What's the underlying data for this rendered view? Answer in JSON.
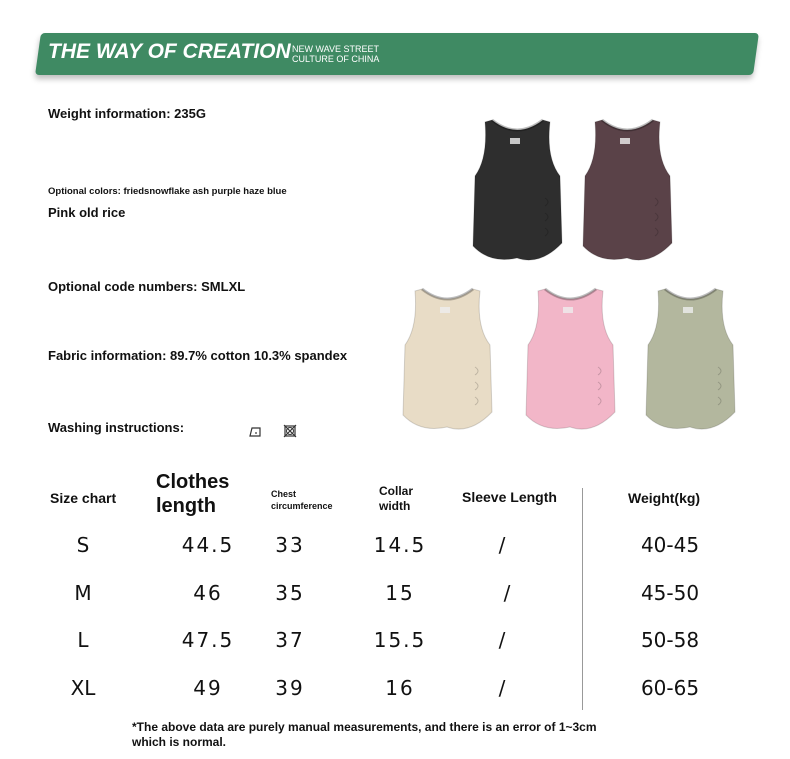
{
  "banner": {
    "title": "THE WAY OF CREATION",
    "subtitle_line1": "NEW WAVE STREET",
    "subtitle_line2": "CULTURE OF CHINA",
    "color": "#3f8a63"
  },
  "info": {
    "weight": "Weight information: 235G",
    "colors_line1": "Optional colors: friedsnowflake ash purple haze blue",
    "colors_line2": "Pink old rice",
    "sizes": "Optional code numbers: SMLXL",
    "fabric": "Fabric information: 89.7% cotton 10.3% spandex",
    "washing": "Washing instructions:"
  },
  "washing_icons": [
    "iron-icon",
    "no-tumble-dry-icon"
  ],
  "products": [
    {
      "color": "#2e2e2e"
    },
    {
      "color": "#5a4248"
    },
    {
      "color": "#e8dcc6"
    },
    {
      "color": "#f2b6c8"
    },
    {
      "color": "#b3b79e"
    }
  ],
  "size_chart": {
    "headers": {
      "size": "Size chart",
      "clothes_length_1": "Clothes",
      "clothes_length_2": "length",
      "chest_1": "Chest",
      "chest_2": "circumference",
      "collar_1": "Collar",
      "collar_2": "width",
      "sleeve": "Sleeve Length",
      "weight": "Weight(kg)"
    },
    "rows": [
      {
        "size": "S",
        "length": "44.5",
        "chest": "33",
        "collar": "14.5",
        "sleeve": "/",
        "weight": "40-45"
      },
      {
        "size": "M",
        "length": "46",
        "chest": "35",
        "collar": "15",
        "sleeve": "/",
        "weight": "45-50"
      },
      {
        "size": "L",
        "length": "47.5",
        "chest": "37",
        "collar": "15.5",
        "sleeve": "/",
        "weight": "50-58"
      },
      {
        "size": "XL",
        "length": "49",
        "chest": "39",
        "collar": "16",
        "sleeve": "/",
        "weight": "60-65"
      }
    ],
    "note_line1": "*The above data are purely manual measurements, and there is an error of 1~3cm",
    "note_line2": "which is normal."
  }
}
